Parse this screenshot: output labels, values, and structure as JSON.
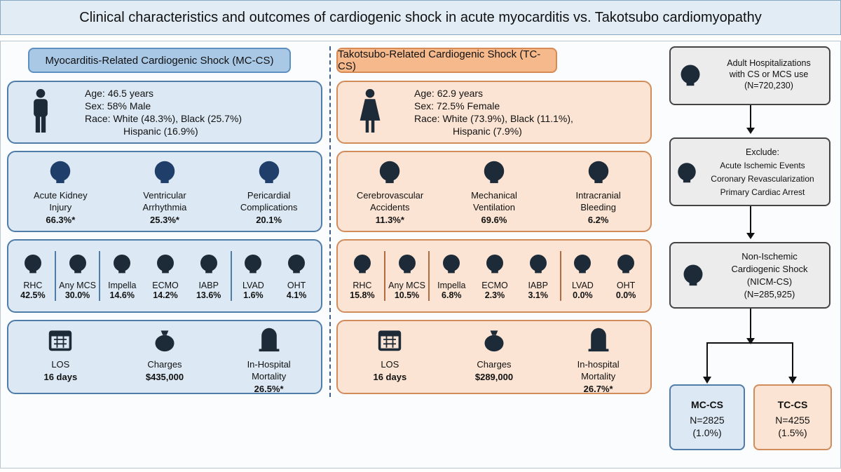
{
  "title": "Clinical characteristics and outcomes of cardiogenic shock in acute myocarditis vs. Takotsubo cardiomyopathy",
  "mc": {
    "header": "Myocarditis-Related Cardiogenic Shock (MC-CS)",
    "demographics": [
      "Age: 46.5 years",
      "Sex: 58% Male",
      "Race: White (48.3%), Black (25.7%)",
      "Hispanic (16.9%)"
    ],
    "complications": [
      {
        "label": "Acute Kidney Injury",
        "value": "66.3%*"
      },
      {
        "label": "Ventricular Arrhythmia",
        "value": "25.3%*"
      },
      {
        "label": "Pericardial Complications",
        "value": "20.1%"
      }
    ],
    "procedures": [
      [
        {
          "label": "RHC",
          "value": "42.5%"
        }
      ],
      [
        {
          "label": "Any MCS",
          "value": "30.0%"
        }
      ],
      [
        {
          "label": "Impella",
          "value": "14.6%"
        },
        {
          "label": "ECMO",
          "value": "14.2%"
        },
        {
          "label": "IABP",
          "value": "13.6%"
        }
      ],
      [
        {
          "label": "LVAD",
          "value": "1.6%"
        },
        {
          "label": "OHT",
          "value": "4.1%"
        }
      ]
    ],
    "outcomes": [
      {
        "label": "LOS",
        "value": "16 days"
      },
      {
        "label": "Charges",
        "value": "$435,000"
      },
      {
        "label": "In-Hospital Mortality",
        "value": "26.5%*"
      }
    ]
  },
  "tc": {
    "header": "Takotsubo-Related Cardiogenic Shock (TC-CS)",
    "demographics": [
      "Age: 62.9 years",
      "Sex: 72.5% Female",
      "Race: White (73.9%), Black (11.1%),",
      "Hispanic (7.9%)"
    ],
    "complications": [
      {
        "label": "Cerebrovascular Accidents",
        "value": "11.3%*"
      },
      {
        "label": "Mechanical Ventilation",
        "value": "69.6%"
      },
      {
        "label": "Intracranial Bleeding",
        "value": "6.2%"
      }
    ],
    "procedures": [
      [
        {
          "label": "RHC",
          "value": "15.8%"
        }
      ],
      [
        {
          "label": "Any MCS",
          "value": "10.5%"
        }
      ],
      [
        {
          "label": "Impella",
          "value": "6.8%"
        },
        {
          "label": "ECMO",
          "value": "2.3%"
        },
        {
          "label": "IABP",
          "value": "3.1%"
        }
      ],
      [
        {
          "label": "LVAD",
          "value": "0.0%"
        },
        {
          "label": "OHT",
          "value": "0.0%"
        }
      ]
    ],
    "outcomes": [
      {
        "label": "LOS",
        "value": "16 days"
      },
      {
        "label": "Charges",
        "value": "$289,000"
      },
      {
        "label": "In-hospital Mortality",
        "value": "26.7%*"
      }
    ]
  },
  "flow": {
    "start": [
      "Adult Hospitalizations",
      "with CS or MCS use",
      "(N=720,230)"
    ],
    "exclude": {
      "heading": "Exclude:",
      "items": [
        "Acute Ischemic Events",
        "Coronary Revascularization",
        "Primary Cardiac Arrest"
      ]
    },
    "nicm": [
      "Non-Ischemic",
      "Cardiogenic Shock",
      "(NICM-CS)",
      "(N=285,925)"
    ],
    "mc": {
      "title": "MC-CS",
      "lines": [
        "N=2825",
        "(1.0%)"
      ]
    },
    "tc": {
      "title": "TC-CS",
      "lines": [
        "N=4255",
        "(1.5%)"
      ]
    }
  }
}
